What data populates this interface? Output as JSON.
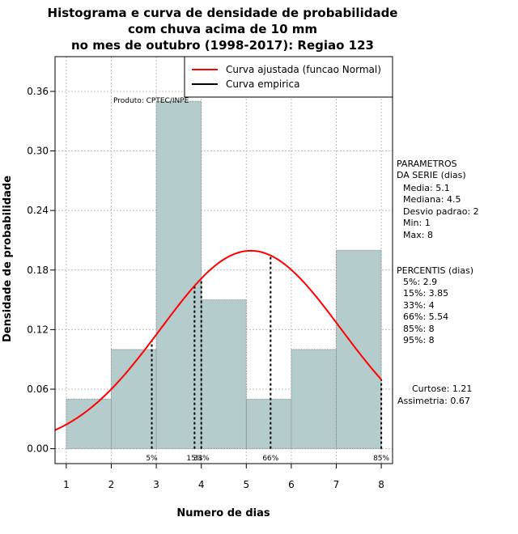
{
  "chart_data": {
    "type": "bar",
    "title_lines": [
      "Histograma e curva de densidade de probabilidade",
      "com chuva acima de 10 mm",
      "no mes de outubro (1998-2017): Regiao 123"
    ],
    "xlabel": "Numero de dias",
    "ylabel": "Densidade de probabilidade",
    "xlim": [
      0.75,
      8.25
    ],
    "ylim": [
      -0.015,
      0.395
    ],
    "x_ticks": [
      1,
      2,
      3,
      4,
      5,
      6,
      7,
      8
    ],
    "y_ticks": [
      0.0,
      0.06,
      0.12,
      0.18,
      0.24,
      0.3,
      0.36
    ],
    "y_tick_labels": [
      "0.00",
      "0.06",
      "0.12",
      "0.18",
      "0.24",
      "0.30",
      "0.36"
    ],
    "bins": [
      {
        "x0": 1,
        "x1": 2,
        "value": 0.05
      },
      {
        "x0": 2,
        "x1": 3,
        "value": 0.1
      },
      {
        "x0": 3,
        "x1": 4,
        "value": 0.35
      },
      {
        "x0": 4,
        "x1": 5,
        "value": 0.15
      },
      {
        "x0": 5,
        "x1": 6,
        "value": 0.05
      },
      {
        "x0": 6,
        "x1": 7,
        "value": 0.1
      },
      {
        "x0": 7,
        "x1": 8,
        "value": 0.2
      }
    ],
    "fitted_curve": {
      "name": "Curva ajustada (funcao Normal)",
      "mean": 5.1,
      "sd": 2.0,
      "color": "#ff0000"
    },
    "empirical_curve": {
      "name": "Curva empirica",
      "color": "#000000"
    },
    "percentile_lines": [
      {
        "label": "5%",
        "x": 2.9
      },
      {
        "label": "15%",
        "x": 3.85
      },
      {
        "label": "33%",
        "x": 4
      },
      {
        "label": "66%",
        "x": 5.54
      },
      {
        "label": "85%",
        "x": 8
      },
      {
        "label": "95%",
        "x": 8
      }
    ],
    "marker_labels": [
      "5%",
      "15%",
      "33%",
      "66%",
      "85%"
    ],
    "bar_color": "#b4cccc",
    "product_note": "Produto: CPTEC/INPE",
    "parametros_title": [
      "PARAMETROS",
      "DA SERIE (dias)"
    ],
    "parametros": [
      "Media: 5.1",
      "Mediana: 4.5",
      "Desvio padrao: 2",
      "Min: 1",
      "Max: 8"
    ],
    "percentis_title": "PERCENTIS (dias)",
    "percentis": [
      "5%: 2.9",
      "15%: 3.85",
      "33%: 4",
      "66%: 5.54",
      "85%: 8",
      "95%: 8"
    ],
    "curtose": "Curtose: 1.21",
    "assimetria": "Assimetria: 0.67"
  }
}
